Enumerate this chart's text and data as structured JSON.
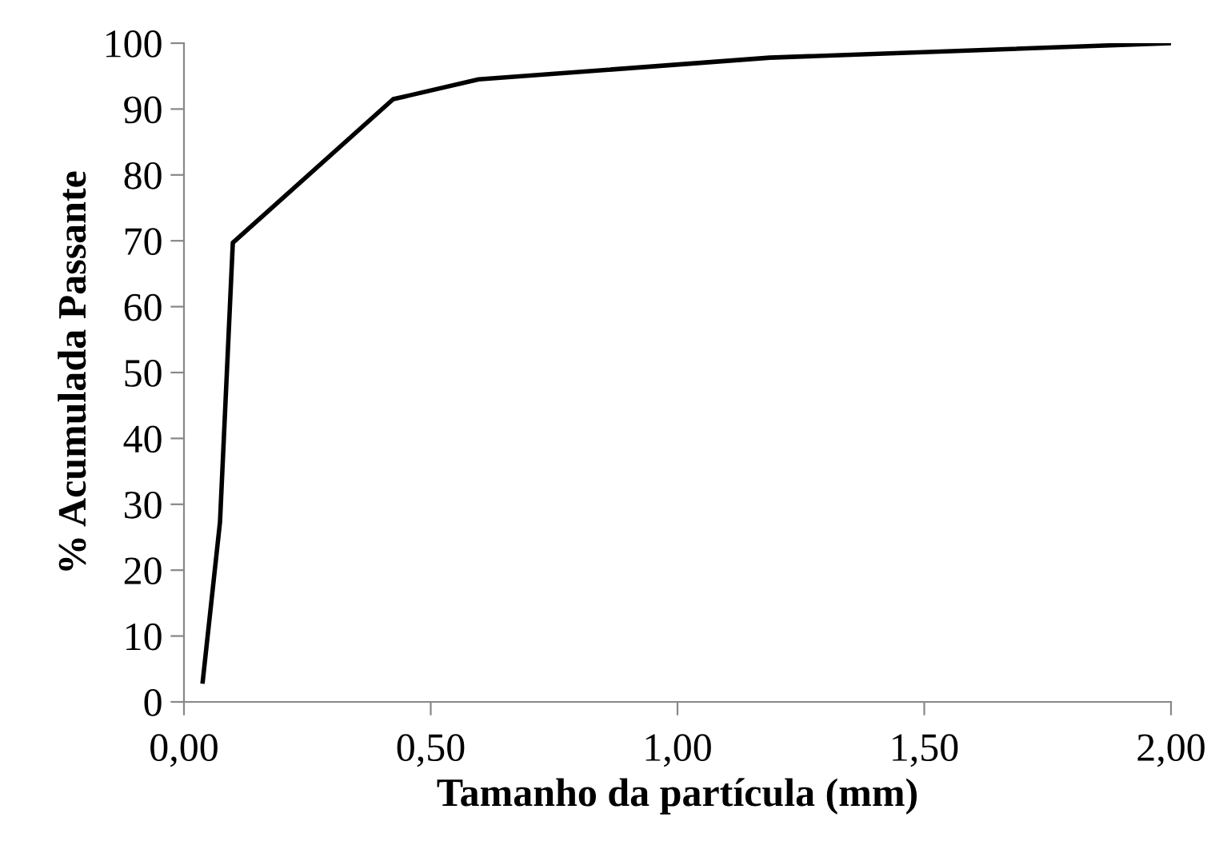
{
  "chart_data": {
    "type": "line",
    "xlabel": "Tamanho da partícula (mm)",
    "ylabel": "% Acumulada Passante",
    "series": [
      {
        "color": "#000000",
        "x": [
          0.038,
          0.073,
          0.099,
          0.424,
          0.597,
          1.187,
          2.0
        ],
        "values": [
          3.1,
          27.3,
          69.7,
          91.5,
          94.5,
          97.8,
          100
        ]
      }
    ],
    "xlim": [
      0,
      2
    ],
    "xticks": [
      {
        "value": 0,
        "label": "0,00"
      },
      {
        "value": 0.5,
        "label": "0,50"
      },
      {
        "value": 1,
        "label": "1,00"
      },
      {
        "value": 1.5,
        "label": "1,50"
      },
      {
        "value": 2,
        "label": "2,00"
      }
    ],
    "ylim": [
      0,
      100
    ],
    "yticks": [
      0,
      10,
      20,
      30,
      40,
      50,
      60,
      70,
      80,
      90,
      100
    ],
    "grid": false,
    "legend": false,
    "marker": "none",
    "line_style": "solid"
  }
}
